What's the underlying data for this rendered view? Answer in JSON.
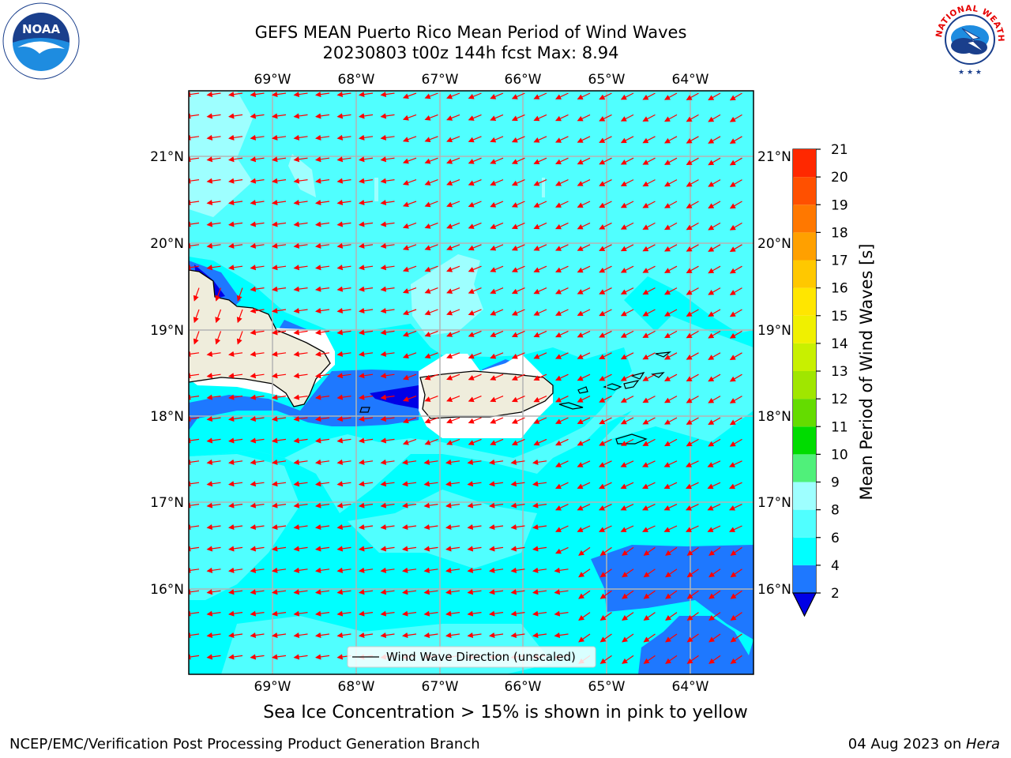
{
  "title_line1": "GEFS MEAN Puerto Rico Mean Period of Wind Waves",
  "title_line2": "20230803 t00z 144h fcst   Max: 8.94",
  "lon_labels": [
    "69°W",
    "68°W",
    "67°W",
    "66°W",
    "65°W",
    "64°W"
  ],
  "lat_labels": [
    "21°N",
    "20°N",
    "19°N",
    "18°N",
    "17°N",
    "16°N"
  ],
  "legend_label": "Wind Wave Direction (unscaled)",
  "colorbar": {
    "label": "Mean Period of Wind Waves [s]",
    "ticks": [
      "2",
      "4",
      "6",
      "8",
      "9",
      "10",
      "11",
      "12",
      "13",
      "14",
      "15",
      "16",
      "17",
      "18",
      "19",
      "20",
      "21"
    ],
    "colors": [
      "#0000e6",
      "#1e78ff",
      "#00ffff",
      "#50ffff",
      "#9effff",
      "#50f07a",
      "#00dc00",
      "#64dc00",
      "#a0e600",
      "#c8f000",
      "#f0f000",
      "#ffe600",
      "#ffc800",
      "#ffa000",
      "#ff7800",
      "#ff5000",
      "#ff2800",
      "#ff0000"
    ]
  },
  "subcaption": "Sea Ice Concentration > 15% is shown in pink to yellow",
  "footer_left": "NCEP/EMC/Verification Post Processing Product Generation Branch",
  "footer_date": "04 Aug 2023 on ",
  "footer_host": "Hera",
  "logos": {
    "left": "NOAA",
    "right": "NATIONAL WEATHER SERVICE"
  },
  "colors": {
    "arrow": "#ff0000",
    "land": "#efeddc",
    "grid": "#b4b4b4"
  }
}
